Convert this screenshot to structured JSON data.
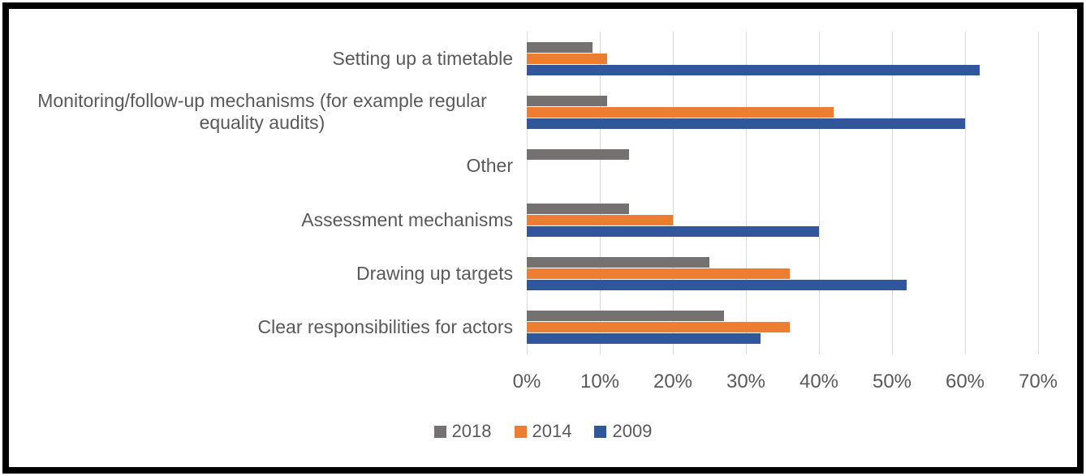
{
  "chart_data": {
    "type": "bar",
    "orientation": "horizontal",
    "title": "",
    "categories": [
      "Setting up a timetable",
      "Monitoring/follow-up mechanisms (for example regular equality audits)",
      "Other",
      "Assessment mechanisms",
      "Drawing up targets",
      "Clear responsibilities for actors"
    ],
    "series": [
      {
        "name": "2018",
        "color": "#767171",
        "values": [
          9,
          11,
          14,
          14,
          25,
          27
        ]
      },
      {
        "name": "2014",
        "color": "#ED7D31",
        "values": [
          11,
          42,
          0,
          20,
          36,
          36
        ]
      },
      {
        "name": "2009",
        "color": "#31569B",
        "values": [
          62,
          60,
          0,
          40,
          52,
          32
        ]
      }
    ],
    "xlim": [
      0,
      70
    ],
    "x_ticks": [
      "0%",
      "10%",
      "20%",
      "30%",
      "40%",
      "50%",
      "60%",
      "70%"
    ],
    "grid": true,
    "legend_position": "bottom"
  },
  "styles": {
    "gridline_color": "#D9D9D9",
    "text_color": "#595959",
    "frame_border_color": "#000000",
    "background": "#FFFFFF"
  }
}
